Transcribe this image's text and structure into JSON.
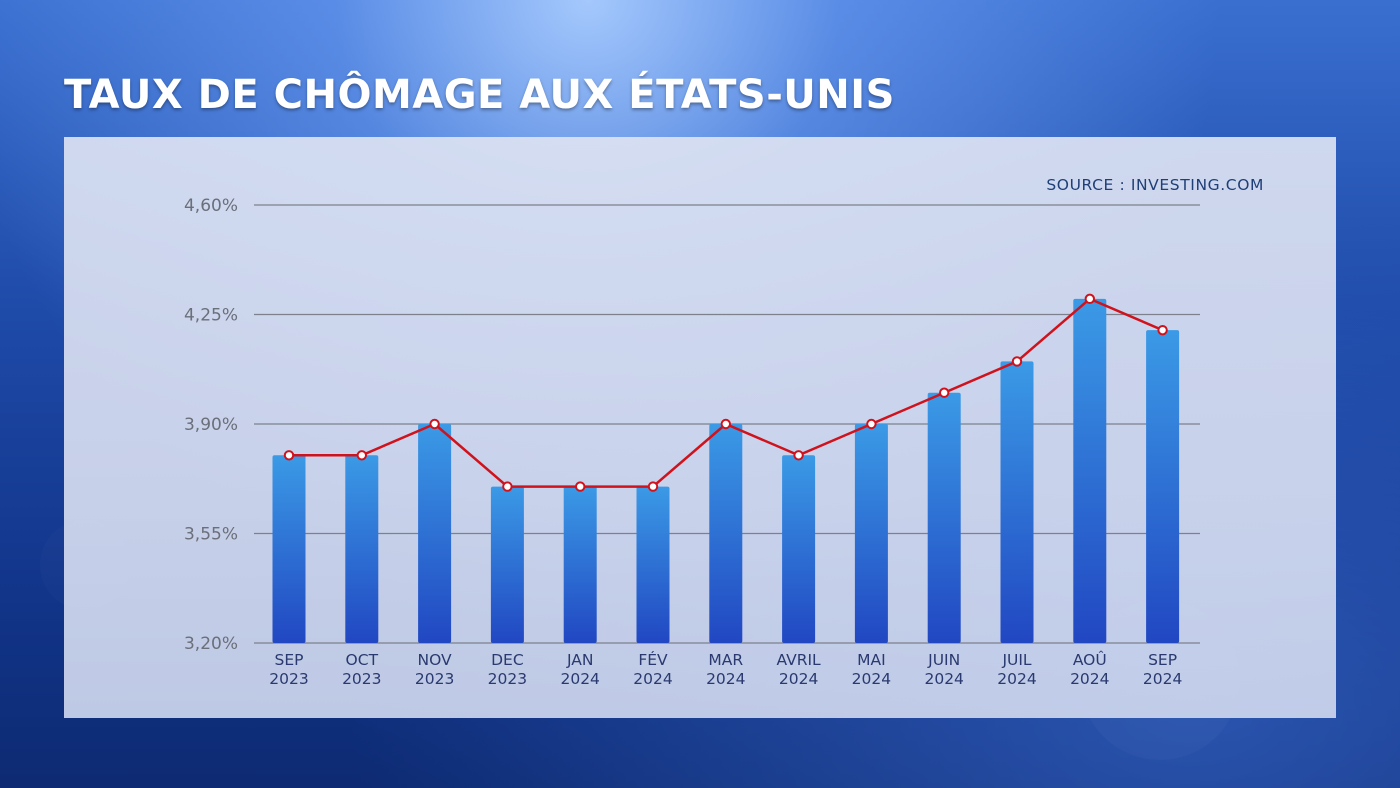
{
  "title": "TAUX DE CHÔMAGE AUX ÉTATS-UNIS",
  "source": "SOURCE : INVESTING.COM",
  "colors": {
    "bar_top": "#3b9ae6",
    "bar_bottom": "#2147c2",
    "line": "#d0121c",
    "grid": "#7d818c"
  },
  "chart_data": {
    "type": "bar",
    "categories": [
      [
        "SEP",
        "2023"
      ],
      [
        "OCT",
        "2023"
      ],
      [
        "NOV",
        "2023"
      ],
      [
        "DEC",
        "2023"
      ],
      [
        "JAN",
        "2024"
      ],
      [
        "FÉV",
        "2024"
      ],
      [
        "MAR",
        "2024"
      ],
      [
        "AVRIL",
        "2024"
      ],
      [
        "MAI",
        "2024"
      ],
      [
        "JUIN",
        "2024"
      ],
      [
        "JUIL",
        "2024"
      ],
      [
        "AOÛ",
        "2024"
      ],
      [
        "SEP",
        "2024"
      ]
    ],
    "values": [
      3.8,
      3.8,
      3.9,
      3.7,
      3.7,
      3.7,
      3.9,
      3.8,
      3.9,
      4.0,
      4.1,
      4.3,
      4.2
    ],
    "overlay": "line",
    "ylim": [
      3.2,
      4.6
    ],
    "yticks": [
      3.2,
      3.55,
      3.9,
      4.25,
      4.6
    ],
    "ytick_labels": [
      "3,20%",
      "3,55%",
      "3,90%",
      "4,25%",
      "4,60%"
    ],
    "grid": true,
    "xlabel": "",
    "ylabel": ""
  }
}
